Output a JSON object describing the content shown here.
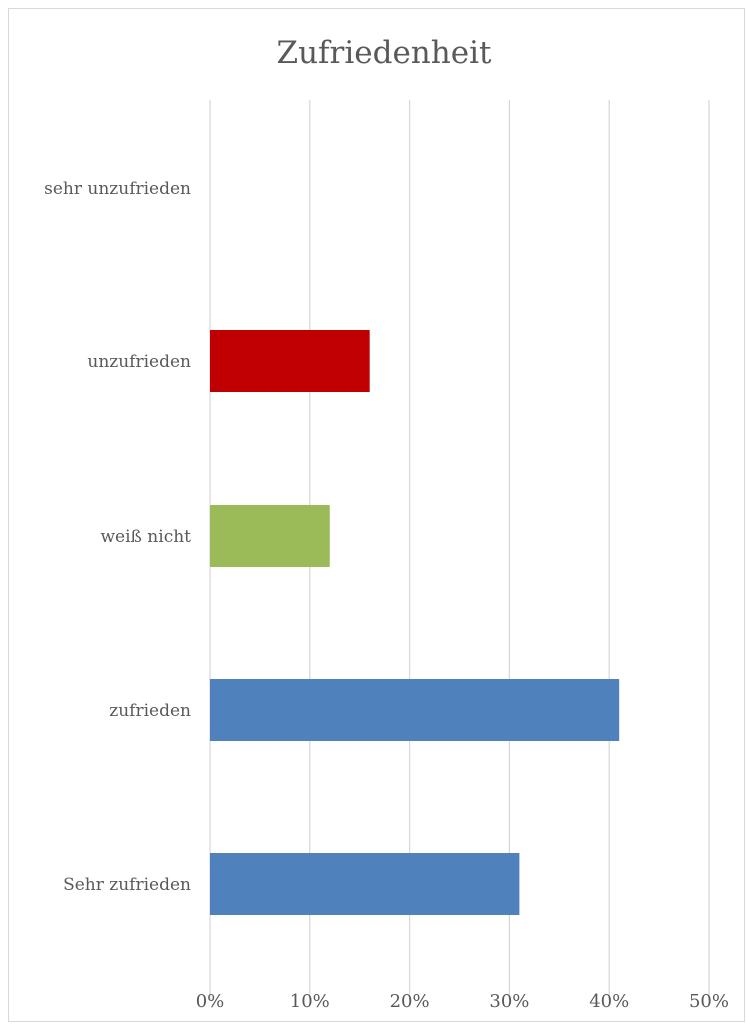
{
  "chart_data": {
    "type": "bar",
    "orientation": "horizontal",
    "title": "Zufriedenheit",
    "categories": [
      "sehr unzufrieden",
      "unzufrieden",
      "weiß nicht",
      "zufrieden",
      "Sehr zufrieden"
    ],
    "values": [
      0,
      16,
      12,
      41,
      31
    ],
    "bar_colors": [
      "#C00000",
      "#C00000",
      "#9BBB59",
      "#4F81BD",
      "#4F81BD"
    ],
    "xlim": [
      0,
      50
    ],
    "x_ticks": [
      0,
      10,
      20,
      30,
      40,
      50
    ],
    "x_tick_labels": [
      "0%",
      "10%",
      "20%",
      "30%",
      "40%",
      "50%"
    ],
    "grid": "vertical",
    "legend": "none"
  }
}
